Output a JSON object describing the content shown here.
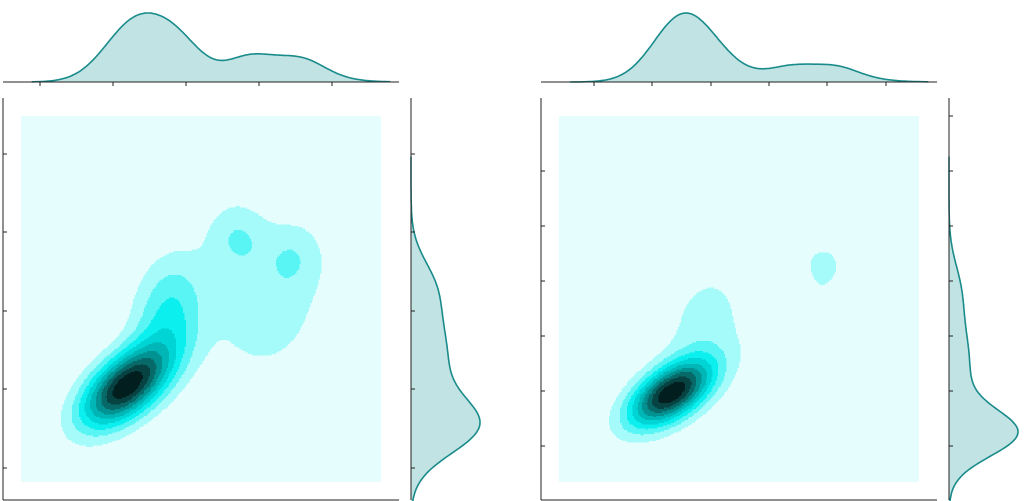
{
  "chart_data": [
    {
      "type": "kde-joint",
      "title": "",
      "xlabel": "",
      "ylabel": "",
      "xlim": [
        0,
        5
      ],
      "ylim": [
        0,
        5
      ],
      "x_ticks": [
        0.5,
        1.5,
        2.5,
        3.5,
        4.5
      ],
      "y_ticks": [
        0.5,
        1.5,
        2.5,
        3.5,
        4.5
      ],
      "tick_labels_shown": false,
      "grid": false,
      "density_levels": 10,
      "colors": {
        "background": "#e6fdfd",
        "fill_dark": "#031e1e",
        "marginal_line": "#1a8b8b",
        "marginal_fill": "#c2e3e3",
        "axis": "#222222"
      },
      "mixture": [
        {
          "mx": 1.45,
          "my": 1.3,
          "sx": 0.42,
          "sy": 0.38,
          "rho": 0.55,
          "w": 1.0
        },
        {
          "mx": 2.05,
          "my": 2.3,
          "sx": 0.35,
          "sy": 0.55,
          "rho": 0.2,
          "w": 0.45
        },
        {
          "mx": 3.4,
          "my": 2.3,
          "sx": 0.55,
          "sy": 0.6,
          "rho": 0.1,
          "w": 0.4
        },
        {
          "mx": 3.0,
          "my": 3.35,
          "sx": 0.3,
          "sy": 0.35,
          "rho": 0.0,
          "w": 0.15
        },
        {
          "mx": 3.8,
          "my": 3.1,
          "sx": 0.3,
          "sy": 0.35,
          "rho": 0.0,
          "w": 0.12
        }
      ]
    },
    {
      "type": "kde-joint",
      "title": "",
      "xlabel": "",
      "ylabel": "",
      "xlim": [
        0,
        5
      ],
      "ylim": [
        0,
        6
      ],
      "x_ticks": [
        0.5,
        1.5,
        2.5,
        3.5,
        4.5
      ],
      "y_ticks": [
        0.5,
        1.5,
        2.5,
        3.5,
        4.5,
        5.5
      ],
      "tick_labels_shown": false,
      "grid": false,
      "density_levels": 10,
      "colors": {
        "background": "#e6fdfd",
        "fill_dark": "#031e1e",
        "marginal_line": "#1a8b8b",
        "marginal_fill": "#c2e3e3",
        "axis": "#222222"
      },
      "mixture": [
        {
          "mx": 1.55,
          "my": 1.45,
          "sx": 0.4,
          "sy": 0.38,
          "rho": 0.55,
          "w": 1.0
        },
        {
          "mx": 2.0,
          "my": 2.6,
          "sx": 0.4,
          "sy": 0.7,
          "rho": 0.25,
          "w": 0.3
        },
        {
          "mx": 3.4,
          "my": 2.6,
          "sx": 0.55,
          "sy": 0.7,
          "rho": 0.1,
          "w": 0.28
        },
        {
          "mx": 3.05,
          "my": 4.0,
          "sx": 0.3,
          "sy": 0.4,
          "rho": 0.0,
          "w": 0.08
        },
        {
          "mx": 3.75,
          "my": 3.65,
          "sx": 0.28,
          "sy": 0.4,
          "rho": 0.0,
          "w": 0.07
        }
      ]
    }
  ]
}
